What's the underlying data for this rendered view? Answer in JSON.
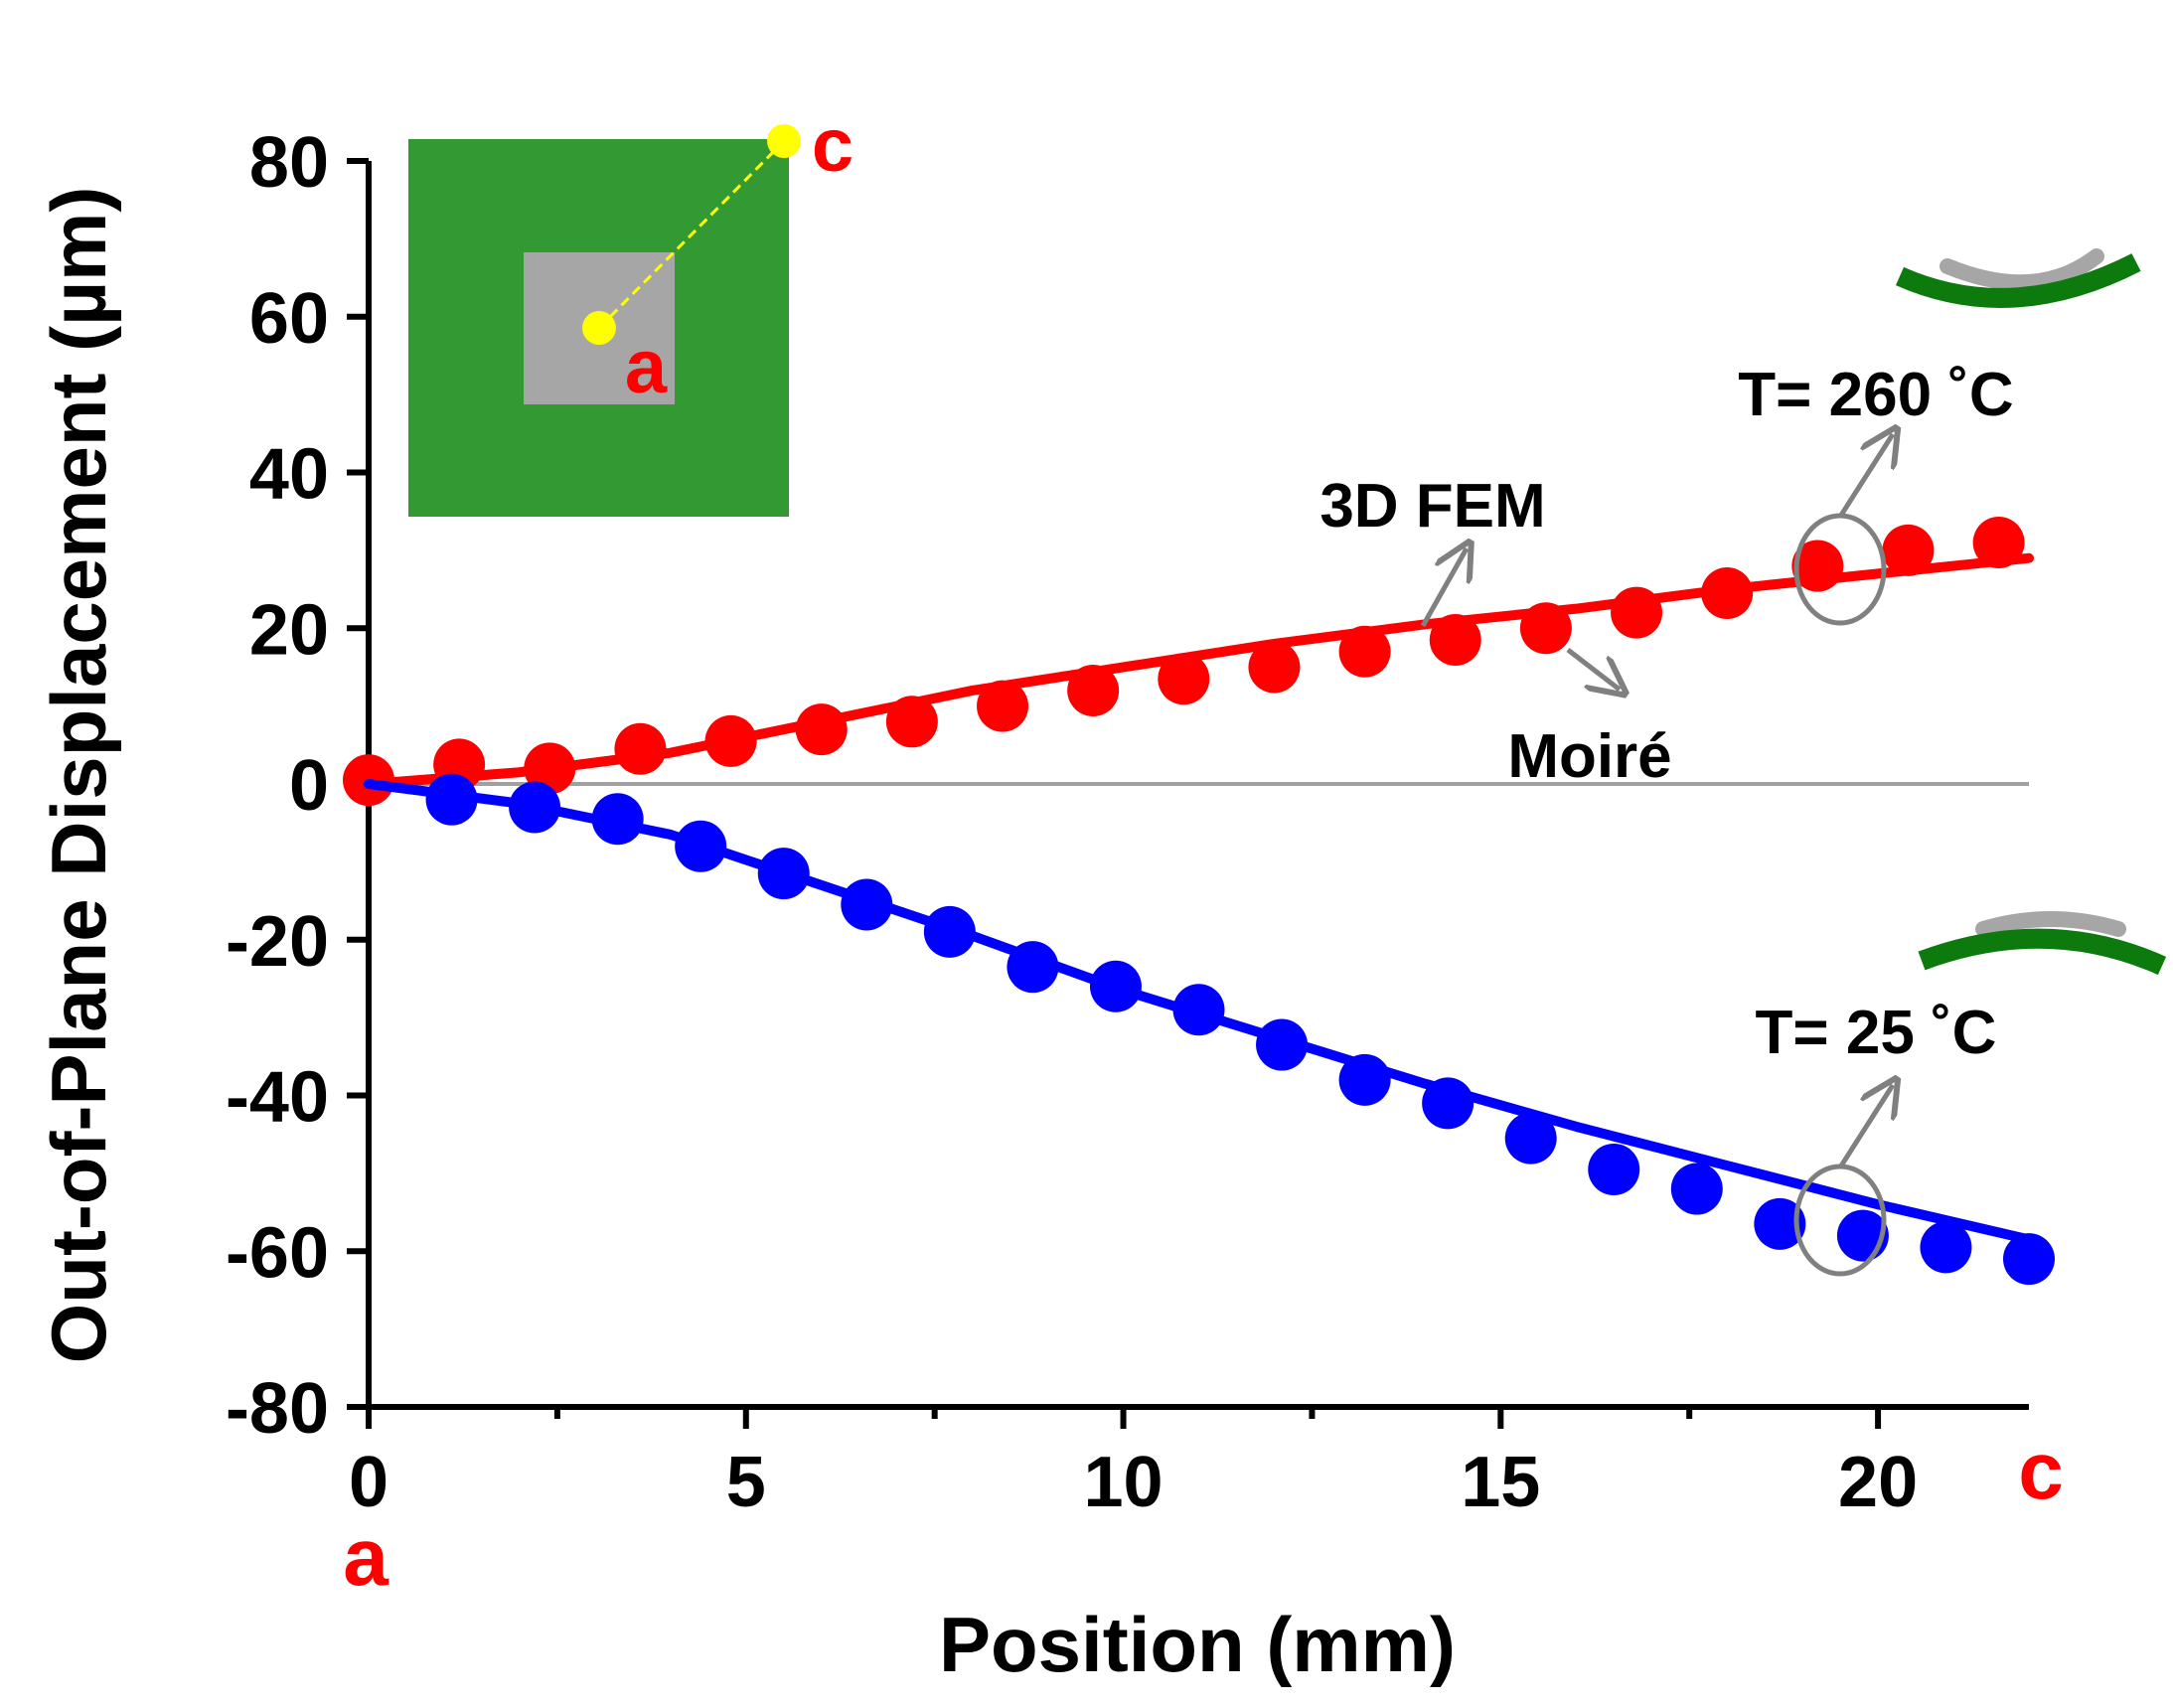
{
  "chart_data": {
    "type": "scatter",
    "title": "",
    "xlabel": "Position (mm)",
    "ylabel": "Out-of-Plane Displacement (µm)",
    "xlim": [
      0,
      22
    ],
    "ylim": [
      -80,
      80
    ],
    "xticks": [
      0,
      5,
      10,
      15,
      20
    ],
    "yticks": [
      80,
      60,
      40,
      20,
      0,
      -20,
      -40,
      -60,
      -80
    ],
    "grid": false,
    "zero_line": true,
    "series": [
      {
        "name": "Moiré (T = 260 °C)",
        "kind": "markers",
        "color": "#ff0000",
        "x": [
          0,
          1.2,
          2.4,
          3.6,
          4.8,
          6.0,
          7.2,
          8.4,
          9.6,
          10.8,
          12.0,
          13.2,
          14.4,
          15.6,
          16.8,
          18.0,
          19.2,
          20.4,
          21.6
        ],
        "y": [
          0.5,
          2.5,
          2.0,
          4.5,
          5.5,
          7.0,
          8.0,
          10.0,
          12.0,
          13.5,
          15.0,
          17.0,
          18.5,
          20.0,
          22.0,
          24.5,
          28.0,
          30.0,
          31.0
        ]
      },
      {
        "name": "3D FEM (T = 260 °C)",
        "kind": "line",
        "color": "#ff0000",
        "x": [
          0,
          2,
          4,
          6,
          8,
          10,
          12,
          14,
          16,
          18,
          20,
          22
        ],
        "y": [
          0,
          1.5,
          4.0,
          8.0,
          12.0,
          15.0,
          18.0,
          20.5,
          22.5,
          25.0,
          27.0,
          29.0
        ]
      },
      {
        "name": "Moiré (T = 25 °C)",
        "kind": "markers",
        "color": "#0000ff",
        "x": [
          1.1,
          2.2,
          3.3,
          4.4,
          5.5,
          6.6,
          7.7,
          8.8,
          9.9,
          11.0,
          12.1,
          13.2,
          14.3,
          15.4,
          16.5,
          17.6,
          18.7,
          19.8,
          20.9,
          22.0
        ],
        "y": [
          -2.0,
          -3.0,
          -4.5,
          -8.0,
          -11.5,
          -15.5,
          -19.0,
          -23.5,
          -26.0,
          -29.0,
          -33.5,
          -38.0,
          -41.0,
          -45.5,
          -49.5,
          -52.0,
          -56.5,
          -58.0,
          -59.5,
          -61.0
        ]
      },
      {
        "name": "3D FEM (T = 25 °C)",
        "kind": "line",
        "color": "#0000ff",
        "x": [
          0,
          2,
          4,
          6,
          8,
          10,
          12,
          14,
          16,
          18,
          20,
          22
        ],
        "y": [
          0,
          -2.5,
          -6.5,
          -13.0,
          -19.5,
          -26.5,
          -32.5,
          -38.5,
          -44.0,
          -49.0,
          -54.0,
          -58.5
        ]
      }
    ],
    "annotations": {
      "fem_label": "3D FEM",
      "moire_label": "Moiré",
      "t_high_label": "T= 260 ˚C",
      "t_low_label": "T= 25 ˚C",
      "x_start_label": "a",
      "x_end_label": "c",
      "inset_a_label": "a",
      "inset_c_label": "c"
    },
    "colors": {
      "axis": "#000000",
      "zero_line": "#a0a0a0",
      "callout": "#808080",
      "inset_board": "#339933",
      "inset_chip": "#a6a6a6",
      "inset_point": "#ffff00",
      "point_label": "#ff0000",
      "warp_board": "#0d7a0d",
      "warp_chip": "#a6a6a6"
    }
  }
}
